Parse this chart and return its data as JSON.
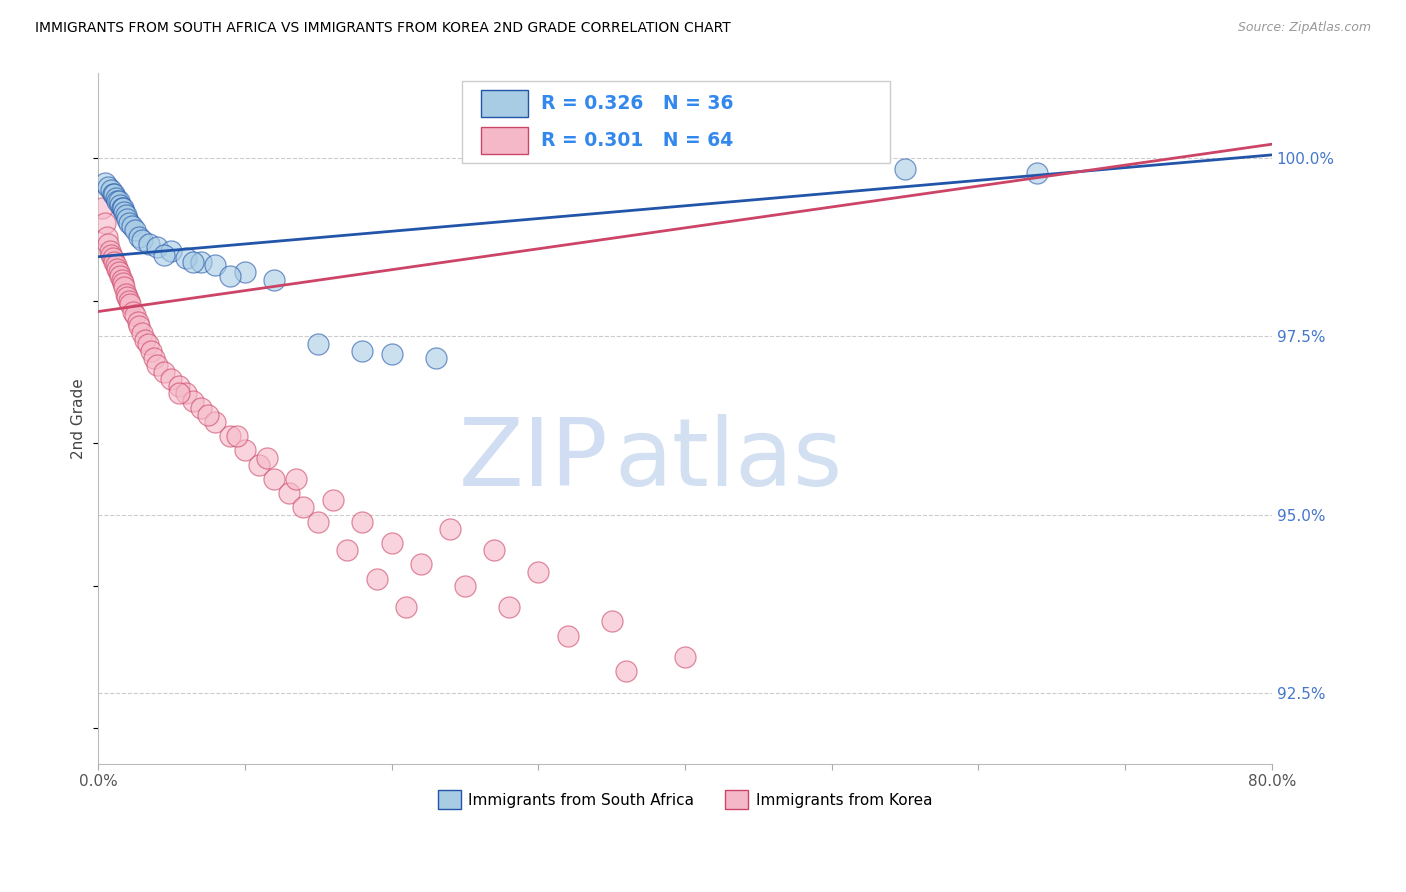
{
  "title": "IMMIGRANTS FROM SOUTH AFRICA VS IMMIGRANTS FROM KOREA 2ND GRADE CORRELATION CHART",
  "source": "Source: ZipAtlas.com",
  "ylabel": "2nd Grade",
  "right_ytick_vals": [
    92.5,
    95.0,
    97.5,
    100.0
  ],
  "right_ytick_labels": [
    "92.5%",
    "95.0%",
    "97.5%",
    "100.0%"
  ],
  "legend_label_blue": "Immigrants from South Africa",
  "legend_label_pink": "Immigrants from Korea",
  "R_blue": 0.326,
  "N_blue": 36,
  "R_pink": 0.301,
  "N_pink": 64,
  "blue_color": "#a8cce4",
  "pink_color": "#f5b8c8",
  "trendline_blue": "#2255aa",
  "trendline_pink": "#cc4466",
  "xmin": 0.0,
  "xmax": 80.0,
  "ymin": 91.5,
  "ymax": 101.2,
  "blue_trend_x0": 0.0,
  "blue_trend_y0": 98.62,
  "blue_trend_x1": 80.0,
  "blue_trend_y1": 100.05,
  "pink_trend_x0": 0.0,
  "pink_trend_y0": 97.85,
  "pink_trend_x1": 80.0,
  "pink_trend_y1": 100.2,
  "blue_scatter_x": [
    0.5,
    0.7,
    0.9,
    1.0,
    1.1,
    1.2,
    1.3,
    1.4,
    1.5,
    1.6,
    1.7,
    1.8,
    1.9,
    2.0,
    2.1,
    2.3,
    2.5,
    2.8,
    3.0,
    3.5,
    4.0,
    5.0,
    6.0,
    7.0,
    8.0,
    10.0,
    12.0,
    15.0,
    18.0,
    20.0,
    23.0,
    55.0,
    64.0,
    4.5,
    6.5,
    9.0
  ],
  "blue_scatter_y": [
    99.65,
    99.6,
    99.55,
    99.5,
    99.5,
    99.45,
    99.4,
    99.4,
    99.35,
    99.3,
    99.3,
    99.25,
    99.2,
    99.15,
    99.1,
    99.05,
    99.0,
    98.9,
    98.85,
    98.8,
    98.75,
    98.7,
    98.6,
    98.55,
    98.5,
    98.4,
    98.3,
    97.4,
    97.3,
    97.25,
    97.2,
    99.85,
    99.8,
    98.65,
    98.55,
    98.35
  ],
  "pink_scatter_x": [
    0.3,
    0.5,
    0.6,
    0.7,
    0.8,
    0.9,
    1.0,
    1.1,
    1.2,
    1.3,
    1.4,
    1.5,
    1.6,
    1.7,
    1.8,
    1.9,
    2.0,
    2.1,
    2.2,
    2.4,
    2.5,
    2.7,
    2.8,
    3.0,
    3.2,
    3.4,
    3.6,
    3.8,
    4.0,
    4.5,
    5.0,
    5.5,
    6.0,
    6.5,
    7.0,
    8.0,
    9.0,
    10.0,
    11.0,
    12.0,
    13.0,
    14.0,
    15.0,
    17.0,
    19.0,
    21.0,
    24.0,
    27.0,
    30.0,
    35.0,
    40.0,
    5.5,
    7.5,
    9.5,
    11.5,
    13.5,
    16.0,
    18.0,
    20.0,
    22.0,
    25.0,
    28.0,
    32.0,
    36.0
  ],
  "pink_scatter_y": [
    99.3,
    99.1,
    98.9,
    98.8,
    98.7,
    98.65,
    98.6,
    98.55,
    98.5,
    98.45,
    98.4,
    98.35,
    98.3,
    98.25,
    98.2,
    98.1,
    98.05,
    98.0,
    97.95,
    97.85,
    97.8,
    97.7,
    97.65,
    97.55,
    97.45,
    97.4,
    97.3,
    97.2,
    97.1,
    97.0,
    96.9,
    96.8,
    96.7,
    96.6,
    96.5,
    96.3,
    96.1,
    95.9,
    95.7,
    95.5,
    95.3,
    95.1,
    94.9,
    94.5,
    94.1,
    93.7,
    94.8,
    94.5,
    94.2,
    93.5,
    93.0,
    96.7,
    96.4,
    96.1,
    95.8,
    95.5,
    95.2,
    94.9,
    94.6,
    94.3,
    94.0,
    93.7,
    93.3,
    92.8
  ]
}
